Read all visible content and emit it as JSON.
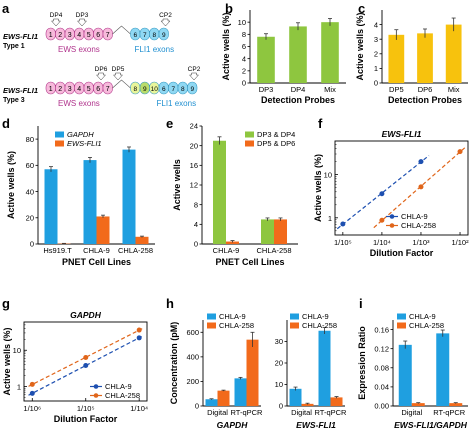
{
  "colors": {
    "blue": "#1f9fe0",
    "orange": "#f26a1b",
    "green": "#8ec63f",
    "lightgreen": "#d9ec9a",
    "yellow": "#f7c20d",
    "pink": "#f7b9db",
    "lightblue": "#8fd8f3",
    "dark_blue": "#1d4fb0",
    "dark_orange": "#e0651a"
  },
  "panel_a": {
    "letter": "a",
    "type1": {
      "label": "EWS-FLI1",
      "sublabel": "Type 1",
      "ews_exons": [
        "1",
        "2",
        "3",
        "4",
        "5",
        "6",
        "7"
      ],
      "fli_exons": [
        "6",
        "7",
        "8",
        "9"
      ],
      "probes_top": [
        "DP4",
        "DP3"
      ],
      "cp": "CP2",
      "ews_label": "EWS exons",
      "fli_label": "FLI1 exons"
    },
    "type3": {
      "label": "EWS-FLI1",
      "sublabel": "Type 3",
      "ews_exons": [
        "1",
        "2",
        "3",
        "4",
        "5",
        "6",
        "7"
      ],
      "fli_exons": [
        "8",
        "9",
        "10",
        "6",
        "7",
        "8",
        "9"
      ],
      "probes_top": [
        "DP6",
        "DP5"
      ],
      "cp": "CP2",
      "ews_label": "EWS exons",
      "fli_label": "FLI1 exons"
    }
  },
  "chart_data": [
    {
      "id": "b",
      "type": "bar",
      "categories": [
        "DP3",
        "DP4",
        "Mix"
      ],
      "values": [
        7.6,
        9.3,
        10.0
      ],
      "errors": [
        0.5,
        0.6,
        0.6
      ],
      "xlabel": "Detection Probes",
      "ylabel": "Active wells (%)",
      "ylim": [
        0,
        12
      ],
      "yticks": [
        0,
        2,
        4,
        6,
        8,
        10
      ]
    },
    {
      "id": "c",
      "type": "bar",
      "categories": [
        "DP5",
        "DP6",
        "Mix"
      ],
      "values": [
        3.3,
        3.4,
        4.0
      ],
      "errors": [
        0.35,
        0.3,
        0.45
      ],
      "xlabel": "Detection Probes",
      "ylabel": "Active wells (%)",
      "ylim": [
        0,
        5
      ],
      "yticks": [
        0,
        1,
        2,
        3,
        4
      ]
    },
    {
      "id": "d",
      "type": "bar",
      "categories": [
        "Hs919.T",
        "CHLA-9",
        "CHLA-258"
      ],
      "series": [
        {
          "name": "GAPDH",
          "values": [
            57,
            64,
            72
          ],
          "errors": [
            2,
            2,
            2
          ]
        },
        {
          "name": "EWS-FLI1",
          "values": [
            0.3,
            21,
            5.5
          ],
          "errors": [
            0.2,
            1,
            0.5
          ]
        }
      ],
      "xlabel": "PNET Cell Lines",
      "ylabel": "Active wells (%)",
      "ylim": [
        0,
        90
      ],
      "yticks": [
        0,
        20,
        40,
        60,
        80
      ],
      "legend": "top-left"
    },
    {
      "id": "e",
      "type": "bar",
      "categories": [
        "CHLA-9",
        "CHLA-258"
      ],
      "series": [
        {
          "name": "DP3 & DP4",
          "values": [
            21,
            5
          ],
          "errors": [
            0.8,
            0.3
          ]
        },
        {
          "name": "DP5 & DP6",
          "values": [
            0.5,
            5
          ],
          "errors": [
            0.2,
            0.3
          ]
        }
      ],
      "xlabel": "PNET Cell Lines",
      "ylabel": "Active wells",
      "ylim": [
        0,
        24
      ],
      "yticks": [
        0,
        4,
        8,
        12,
        16,
        20,
        24
      ],
      "legend": "top-right"
    },
    {
      "id": "f",
      "type": "scatter",
      "title": "EWS-FLI1",
      "x_tick_labels": [
        "1/10⁵",
        "1/10⁴",
        "1/10³",
        "1/10²"
      ],
      "y_tick_labels": [
        "1",
        "10"
      ],
      "series": [
        {
          "name": "CHLA-9",
          "x": [
            1e-05,
            0.0001,
            0.001
          ],
          "y": [
            0.72,
            3.6,
            20
          ]
        },
        {
          "name": "CHLA-258",
          "x": [
            0.0001,
            0.001,
            0.01
          ],
          "y": [
            0.88,
            5.2,
            34
          ]
        }
      ],
      "xlabel": "Dilution Factor",
      "ylabel": "Active wells (%)",
      "xlim": [
        6.3e-06,
        0.016
      ],
      "ylim": [
        0.4,
        60
      ],
      "scale": "log-log",
      "legend": "bottom-right"
    },
    {
      "id": "g",
      "type": "scatter",
      "title": "GAPDH",
      "x_tick_labels": [
        "1/10⁶",
        "1/10⁵",
        "1/10⁴"
      ],
      "y_tick_labels": [
        "1",
        "10"
      ],
      "series": [
        {
          "name": "CHLA-9",
          "x": [
            1e-06,
            1e-05,
            0.0001
          ],
          "y": [
            0.65,
            3.8,
            22
          ]
        },
        {
          "name": "CHLA-258",
          "x": [
            1e-06,
            1e-05,
            0.0001
          ],
          "y": [
            1.15,
            6.3,
            36
          ]
        }
      ],
      "xlabel": "Dilution Factor",
      "ylabel": "Active wells (%)",
      "xlim": [
        7e-07,
        0.00014
      ],
      "ylim": [
        0.4,
        60
      ],
      "scale": "log-log",
      "legend": "bottom-right"
    },
    {
      "id": "h1",
      "type": "bar",
      "categories": [
        "Digital",
        "RT-qPCR"
      ],
      "series": [
        {
          "name": "CHLA-9",
          "values": [
            55,
            225
          ],
          "errors": [
            4,
            8
          ]
        },
        {
          "name": "CHLA-258",
          "values": [
            125,
            540
          ],
          "errors": [
            4,
            60
          ]
        }
      ],
      "xlabel": "GAPDH",
      "ylabel": "Concentration (pM)",
      "ylim": [
        0,
        700
      ],
      "yticks": [
        0,
        200,
        400,
        600
      ],
      "legend": "top-left"
    },
    {
      "id": "h2",
      "type": "bar",
      "categories": [
        "Digital",
        "RT-qPCR"
      ],
      "series": [
        {
          "name": "CHLA-9",
          "values": [
            8,
            35
          ],
          "errors": [
            0.8,
            1.5
          ]
        },
        {
          "name": "CHLA-258",
          "values": [
            1,
            4
          ],
          "errors": [
            0.3,
            0.4
          ]
        }
      ],
      "xlabel": "EWS-FLI1",
      "ylim": [
        0,
        40
      ],
      "yticks": [
        0,
        10,
        20,
        30
      ],
      "legend": "top-left"
    },
    {
      "id": "i",
      "type": "bar",
      "categories": [
        "Digital",
        "RT-qPCR"
      ],
      "series": [
        {
          "name": "CHLA-9",
          "values": [
            0.128,
            0.152
          ],
          "errors": [
            0.008,
            0.007
          ]
        },
        {
          "name": "CHLA-258",
          "values": [
            0.006,
            0.006
          ],
          "errors": [
            0.001,
            0.001
          ]
        }
      ],
      "xlabel": "EWS-FLI1/GAPDH",
      "ylabel": "Expression Ratio",
      "ylim": [
        0,
        0.18
      ],
      "yticks": [
        0,
        0.04,
        0.08,
        0.12,
        0.16
      ],
      "yticklabels": [
        "0.00",
        "0.04",
        "0.08",
        "0.12",
        "0.16"
      ],
      "legend": "top-left"
    }
  ]
}
